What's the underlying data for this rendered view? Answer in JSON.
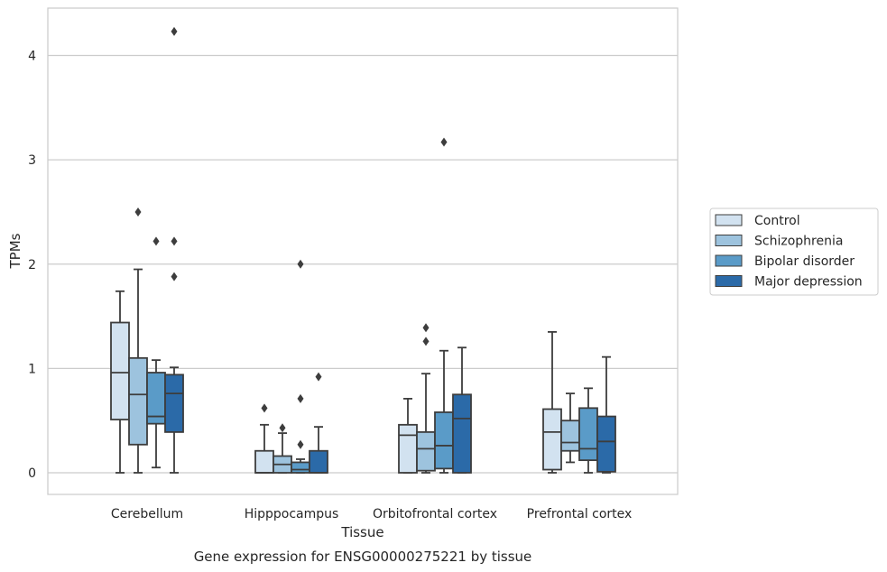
{
  "chart_data": {
    "type": "box",
    "caption": "Gene expression for ENSG00000275221 by tissue",
    "xlabel": "Tissue",
    "ylabel": "TPMs",
    "ylim": [
      -0.2,
      4.45
    ],
    "yticks": [
      0,
      1,
      2,
      3,
      4
    ],
    "grid": true,
    "legend_position": "right",
    "categories": [
      "Cerebellum",
      "Hipppocampus",
      "Orbitofrontal cortex",
      "Prefrontal cortex"
    ],
    "series": [
      {
        "name": "Control",
        "color": "#d2e2f0",
        "boxes": [
          {
            "whislo": 0.0,
            "q1": 0.51,
            "med": 0.96,
            "q3": 1.44,
            "whishi": 1.74,
            "fliers": []
          },
          {
            "whislo": 0.0,
            "q1": 0.0,
            "med": 0.0,
            "q3": 0.21,
            "whishi": 0.46,
            "fliers": [
              0.62
            ]
          },
          {
            "whislo": 0.0,
            "q1": 0.0,
            "med": 0.36,
            "q3": 0.46,
            "whishi": 0.71,
            "fliers": []
          },
          {
            "whislo": 0.0,
            "q1": 0.03,
            "med": 0.39,
            "q3": 0.61,
            "whishi": 1.35,
            "fliers": []
          }
        ]
      },
      {
        "name": "Schizophrenia",
        "color": "#9dc3de",
        "boxes": [
          {
            "whislo": 0.0,
            "q1": 0.27,
            "med": 0.75,
            "q3": 1.1,
            "whishi": 1.95,
            "fliers": [
              2.5
            ]
          },
          {
            "whislo": 0.0,
            "q1": 0.0,
            "med": 0.08,
            "q3": 0.16,
            "whishi": 0.38,
            "fliers": [
              0.43
            ]
          },
          {
            "whislo": 0.0,
            "q1": 0.02,
            "med": 0.23,
            "q3": 0.39,
            "whishi": 0.95,
            "fliers": [
              1.26,
              1.39
            ]
          },
          {
            "whislo": 0.1,
            "q1": 0.21,
            "med": 0.29,
            "q3": 0.5,
            "whishi": 0.76,
            "fliers": []
          }
        ]
      },
      {
        "name": "Bipolar disorder",
        "color": "#5a9bc8",
        "boxes": [
          {
            "whislo": 0.05,
            "q1": 0.47,
            "med": 0.54,
            "q3": 0.96,
            "whishi": 1.08,
            "fliers": [
              2.22
            ]
          },
          {
            "whislo": 0.0,
            "q1": 0.0,
            "med": 0.03,
            "q3": 0.1,
            "whishi": 0.13,
            "fliers": [
              0.27,
              0.71,
              2.0
            ]
          },
          {
            "whislo": 0.0,
            "q1": 0.04,
            "med": 0.26,
            "q3": 0.58,
            "whishi": 1.17,
            "fliers": [
              3.17
            ]
          },
          {
            "whislo": 0.0,
            "q1": 0.12,
            "med": 0.23,
            "q3": 0.62,
            "whishi": 0.81,
            "fliers": []
          }
        ]
      },
      {
        "name": "Major depression",
        "color": "#2b6aa8",
        "boxes": [
          {
            "whislo": 0.0,
            "q1": 0.39,
            "med": 0.76,
            "q3": 0.94,
            "whishi": 1.01,
            "fliers": [
              1.88,
              2.22,
              4.23
            ]
          },
          {
            "whislo": 0.0,
            "q1": 0.0,
            "med": 0.0,
            "q3": 0.21,
            "whishi": 0.44,
            "fliers": [
              0.92
            ]
          },
          {
            "whislo": 0.0,
            "q1": 0.0,
            "med": 0.52,
            "q3": 0.75,
            "whishi": 1.2,
            "fliers": []
          },
          {
            "whislo": 0.0,
            "q1": 0.01,
            "med": 0.3,
            "q3": 0.54,
            "whishi": 1.11,
            "fliers": []
          }
        ]
      }
    ]
  }
}
